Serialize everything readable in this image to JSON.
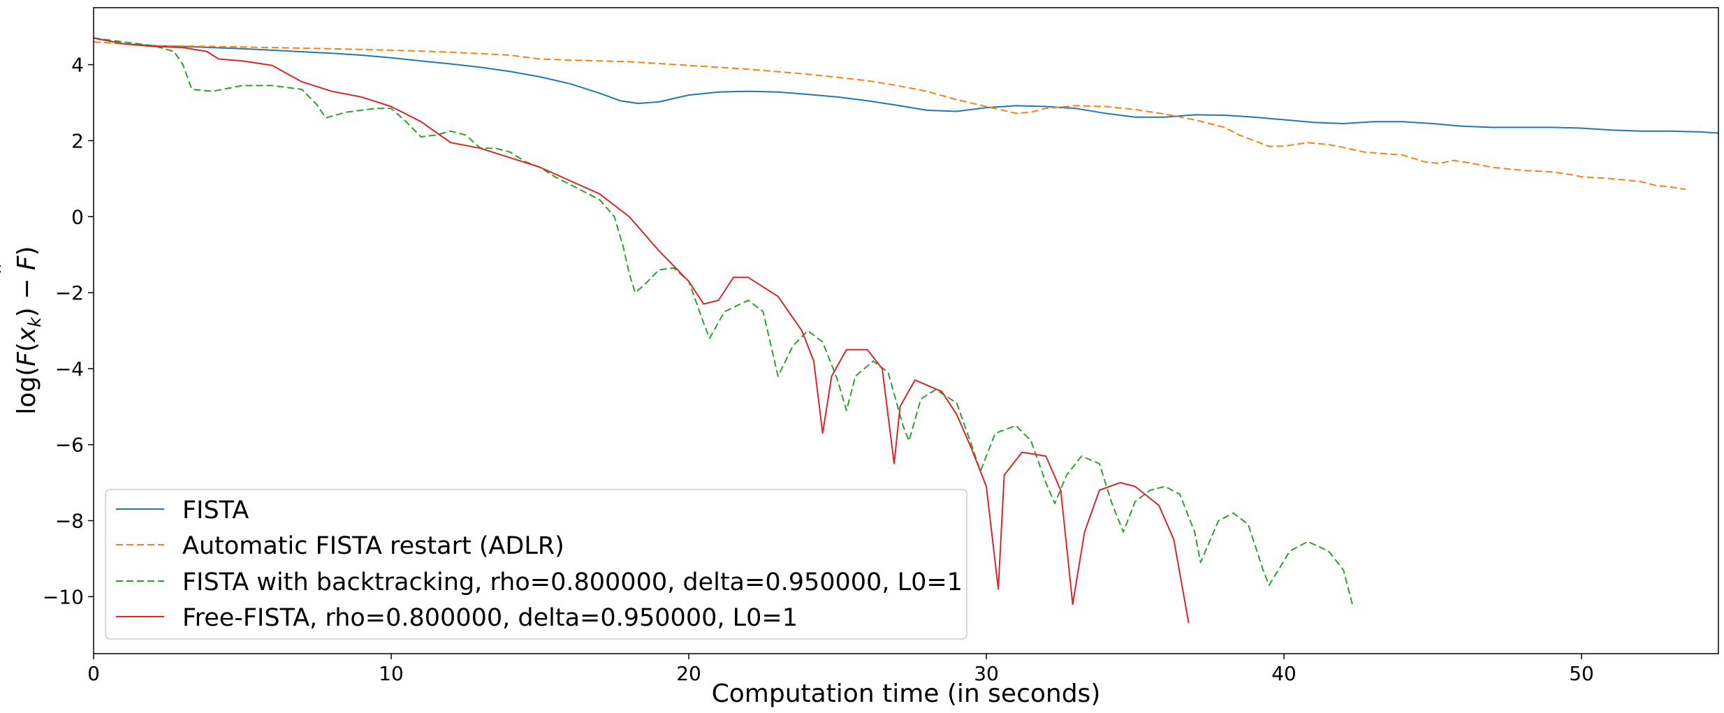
{
  "chart_data": {
    "type": "line",
    "xlabel": "Computation time (in seconds)",
    "ylabel_parts": [
      "log(",
      "F",
      "(",
      "x",
      "k",
      ") − ",
      "F",
      ")"
    ],
    "xlim": [
      0,
      54.6
    ],
    "ylim": [
      -11.5,
      5.5
    ],
    "xticks": [
      0,
      10,
      20,
      30,
      40,
      50
    ],
    "yticks": [
      4,
      2,
      0,
      -2,
      -4,
      -6,
      -8,
      -10
    ],
    "grid": false,
    "legend_position": "lower-left",
    "series": [
      {
        "name": "FISTA",
        "color": "#1f77b4",
        "dash": "solid",
        "points": [
          [
            0,
            4.7
          ],
          [
            1,
            4.55
          ],
          [
            2,
            4.5
          ],
          [
            3,
            4.48
          ],
          [
            4,
            4.45
          ],
          [
            5,
            4.42
          ],
          [
            6,
            4.38
          ],
          [
            7,
            4.34
          ],
          [
            8,
            4.3
          ],
          [
            9,
            4.25
          ],
          [
            10,
            4.18
          ],
          [
            11,
            4.1
          ],
          [
            12,
            4.02
          ],
          [
            13,
            3.93
          ],
          [
            14,
            3.82
          ],
          [
            15,
            3.68
          ],
          [
            16,
            3.5
          ],
          [
            17,
            3.25
          ],
          [
            17.7,
            3.05
          ],
          [
            18.3,
            2.98
          ],
          [
            19,
            3.02
          ],
          [
            20,
            3.2
          ],
          [
            21,
            3.28
          ],
          [
            22,
            3.3
          ],
          [
            23,
            3.28
          ],
          [
            24,
            3.22
          ],
          [
            25,
            3.15
          ],
          [
            26,
            3.05
          ],
          [
            27,
            2.93
          ],
          [
            28,
            2.8
          ],
          [
            29,
            2.77
          ],
          [
            30,
            2.87
          ],
          [
            31,
            2.92
          ],
          [
            32,
            2.9
          ],
          [
            33,
            2.85
          ],
          [
            34,
            2.72
          ],
          [
            35,
            2.62
          ],
          [
            36,
            2.62
          ],
          [
            37,
            2.68
          ],
          [
            38,
            2.67
          ],
          [
            39,
            2.62
          ],
          [
            40,
            2.55
          ],
          [
            41,
            2.48
          ],
          [
            42,
            2.45
          ],
          [
            43,
            2.5
          ],
          [
            44,
            2.5
          ],
          [
            45,
            2.45
          ],
          [
            46,
            2.38
          ],
          [
            47,
            2.35
          ],
          [
            48,
            2.35
          ],
          [
            49,
            2.35
          ],
          [
            50,
            2.33
          ],
          [
            51,
            2.28
          ],
          [
            52,
            2.25
          ],
          [
            53,
            2.25
          ],
          [
            54,
            2.23
          ],
          [
            54.6,
            2.2
          ]
        ]
      },
      {
        "name": "Automatic FISTA restart (ADLR)",
        "color": "#ff7f0e",
        "dash": "10,5",
        "points": [
          [
            0,
            4.6
          ],
          [
            2,
            4.5
          ],
          [
            4,
            4.48
          ],
          [
            6,
            4.45
          ],
          [
            8,
            4.42
          ],
          [
            10,
            4.38
          ],
          [
            12,
            4.33
          ],
          [
            14,
            4.25
          ],
          [
            15,
            4.15
          ],
          [
            16,
            4.12
          ],
          [
            18,
            4.08
          ],
          [
            20,
            3.98
          ],
          [
            22,
            3.88
          ],
          [
            24,
            3.75
          ],
          [
            26,
            3.58
          ],
          [
            27,
            3.45
          ],
          [
            28,
            3.3
          ],
          [
            29,
            3.08
          ],
          [
            30,
            2.9
          ],
          [
            31,
            2.72
          ],
          [
            31.5,
            2.75
          ],
          [
            32,
            2.85
          ],
          [
            33,
            2.92
          ],
          [
            34,
            2.9
          ],
          [
            35,
            2.82
          ],
          [
            36,
            2.7
          ],
          [
            37,
            2.55
          ],
          [
            38,
            2.35
          ],
          [
            38.5,
            2.15
          ],
          [
            39,
            2.0
          ],
          [
            39.5,
            1.85
          ],
          [
            40,
            1.86
          ],
          [
            40.8,
            1.95
          ],
          [
            41.5,
            1.9
          ],
          [
            42,
            1.82
          ],
          [
            42.7,
            1.7
          ],
          [
            43.5,
            1.65
          ],
          [
            44,
            1.62
          ],
          [
            44.7,
            1.45
          ],
          [
            45.2,
            1.4
          ],
          [
            45.7,
            1.48
          ],
          [
            46.2,
            1.42
          ],
          [
            47,
            1.3
          ],
          [
            48,
            1.22
          ],
          [
            49,
            1.18
          ],
          [
            49.7,
            1.1
          ],
          [
            50,
            1.05
          ],
          [
            51,
            1.0
          ],
          [
            52,
            0.92
          ],
          [
            52.5,
            0.82
          ],
          [
            53,
            0.78
          ],
          [
            53.5,
            0.72
          ]
        ]
      },
      {
        "name": "FISTA with backtracking, rho=0.800000, delta=0.950000, L0=1",
        "color": "#2ca02c",
        "dash": "10,5",
        "points": [
          [
            0,
            4.7
          ],
          [
            1,
            4.6
          ],
          [
            2,
            4.5
          ],
          [
            2.7,
            4.35
          ],
          [
            3,
            4.0
          ],
          [
            3.3,
            3.35
          ],
          [
            4,
            3.3
          ],
          [
            5,
            3.45
          ],
          [
            6,
            3.45
          ],
          [
            7,
            3.35
          ],
          [
            7.5,
            2.95
          ],
          [
            7.8,
            2.6
          ],
          [
            8.5,
            2.75
          ],
          [
            9.5,
            2.85
          ],
          [
            10,
            2.85
          ],
          [
            10.5,
            2.5
          ],
          [
            11,
            2.1
          ],
          [
            11.5,
            2.15
          ],
          [
            12,
            2.25
          ],
          [
            12.5,
            2.15
          ],
          [
            13,
            1.8
          ],
          [
            13.5,
            1.8
          ],
          [
            14,
            1.7
          ],
          [
            14.5,
            1.45
          ],
          [
            15,
            1.3
          ],
          [
            15.5,
            1.05
          ],
          [
            16.5,
            0.65
          ],
          [
            17,
            0.45
          ],
          [
            17.5,
            0.0
          ],
          [
            17.8,
            -0.8
          ],
          [
            18,
            -1.5
          ],
          [
            18.2,
            -2.0
          ],
          [
            18.5,
            -1.8
          ],
          [
            19,
            -1.4
          ],
          [
            19.5,
            -1.35
          ],
          [
            20,
            -1.7
          ],
          [
            20.5,
            -2.8
          ],
          [
            20.7,
            -3.2
          ],
          [
            21.2,
            -2.5
          ],
          [
            22,
            -2.2
          ],
          [
            22.5,
            -2.5
          ],
          [
            23,
            -4.2
          ],
          [
            23.5,
            -3.4
          ],
          [
            24,
            -3.0
          ],
          [
            24.5,
            -3.3
          ],
          [
            25,
            -4.3
          ],
          [
            25.3,
            -5.1
          ],
          [
            25.6,
            -4.2
          ],
          [
            26.2,
            -3.8
          ],
          [
            26.7,
            -4.1
          ],
          [
            27.2,
            -5.5
          ],
          [
            27.4,
            -5.9
          ],
          [
            27.8,
            -4.8
          ],
          [
            28.3,
            -4.55
          ],
          [
            29,
            -4.9
          ],
          [
            29.5,
            -6.0
          ],
          [
            29.8,
            -6.7
          ],
          [
            30.3,
            -5.7
          ],
          [
            31,
            -5.5
          ],
          [
            31.5,
            -5.9
          ],
          [
            32,
            -7.0
          ],
          [
            32.3,
            -7.55
          ],
          [
            32.7,
            -6.8
          ],
          [
            33.2,
            -6.3
          ],
          [
            33.8,
            -6.5
          ],
          [
            34.2,
            -7.5
          ],
          [
            34.6,
            -8.3
          ],
          [
            35,
            -7.5
          ],
          [
            35.5,
            -7.2
          ],
          [
            36,
            -7.1
          ],
          [
            36.5,
            -7.3
          ],
          [
            37,
            -8.3
          ],
          [
            37.2,
            -9.1
          ],
          [
            37.8,
            -8.0
          ],
          [
            38.3,
            -7.8
          ],
          [
            38.8,
            -8.1
          ],
          [
            39.3,
            -9.3
          ],
          [
            39.5,
            -9.7
          ],
          [
            40.2,
            -8.8
          ],
          [
            40.8,
            -8.55
          ],
          [
            41.5,
            -8.8
          ],
          [
            42,
            -9.3
          ],
          [
            42.3,
            -10.2
          ]
        ]
      },
      {
        "name": "Free-FISTA, rho=0.800000, delta=0.950000, L0=1",
        "color": "#d62728",
        "dash": "solid",
        "points": [
          [
            0,
            4.7
          ],
          [
            1,
            4.55
          ],
          [
            2,
            4.48
          ],
          [
            3,
            4.45
          ],
          [
            3.8,
            4.35
          ],
          [
            4.2,
            4.15
          ],
          [
            5,
            4.1
          ],
          [
            6,
            3.98
          ],
          [
            7,
            3.55
          ],
          [
            8,
            3.3
          ],
          [
            9,
            3.15
          ],
          [
            10,
            2.9
          ],
          [
            11,
            2.5
          ],
          [
            12,
            1.95
          ],
          [
            13,
            1.8
          ],
          [
            14,
            1.55
          ],
          [
            15,
            1.3
          ],
          [
            16,
            0.95
          ],
          [
            17,
            0.6
          ],
          [
            18,
            0.0
          ],
          [
            19,
            -0.9
          ],
          [
            20,
            -1.7
          ],
          [
            20.5,
            -2.3
          ],
          [
            21,
            -2.2
          ],
          [
            21.5,
            -1.6
          ],
          [
            22,
            -1.6
          ],
          [
            23,
            -2.1
          ],
          [
            23.8,
            -3.0
          ],
          [
            24.2,
            -3.8
          ],
          [
            24.5,
            -5.7
          ],
          [
            24.8,
            -4.2
          ],
          [
            25.3,
            -3.5
          ],
          [
            26,
            -3.5
          ],
          [
            26.5,
            -4.0
          ],
          [
            26.9,
            -6.5
          ],
          [
            27.1,
            -5.0
          ],
          [
            27.6,
            -4.3
          ],
          [
            28.5,
            -4.6
          ],
          [
            29,
            -5.2
          ],
          [
            29.5,
            -6.1
          ],
          [
            30,
            -7.1
          ],
          [
            30.4,
            -9.8
          ],
          [
            30.6,
            -6.8
          ],
          [
            31.2,
            -6.2
          ],
          [
            32,
            -6.3
          ],
          [
            32.5,
            -7.2
          ],
          [
            32.9,
            -10.2
          ],
          [
            33.3,
            -8.3
          ],
          [
            33.8,
            -7.2
          ],
          [
            34.5,
            -7.0
          ],
          [
            35,
            -7.1
          ],
          [
            35.8,
            -7.6
          ],
          [
            36.3,
            -8.5
          ],
          [
            36.8,
            -10.7
          ]
        ]
      }
    ]
  }
}
